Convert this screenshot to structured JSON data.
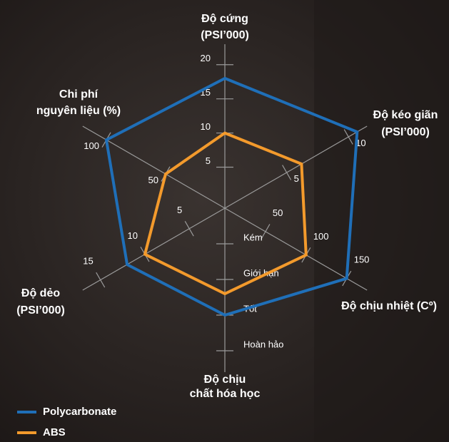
{
  "chart_data": {
    "type": "radar",
    "axes": [
      {
        "label": [
          "Độ cứng",
          "(PSI’000)"
        ],
        "lim": [
          -1,
          23
        ],
        "ticks": [
          5,
          10,
          15,
          20
        ]
      },
      {
        "label": [
          "Độ kéo giãn",
          "(PSI’000)"
        ],
        "lim": [
          0,
          11.5
        ],
        "ticks": [
          5,
          10
        ]
      },
      {
        "label": [
          "Độ chịu nhiệt (Cº)"
        ],
        "lim": [
          0,
          175
        ],
        "ticks": [
          50,
          100,
          150
        ]
      },
      {
        "label": [
          "Độ chịu",
          "chất hóa học"
        ],
        "lim": [
          0,
          4.6
        ],
        "ticks": [
          {
            "value": 1,
            "label": "Kém"
          },
          {
            "value": 2,
            "label": "Giới hạn"
          },
          {
            "value": 3,
            "label": "Tốt"
          },
          {
            "value": 4,
            "label": "Hoàn hảo"
          }
        ]
      },
      {
        "label": [
          "Độ dẻo",
          "(PSI’000)"
        ],
        "lim": [
          1,
          17
        ],
        "ticks": [
          5,
          10,
          15
        ]
      },
      {
        "label": [
          "Chi phí",
          "nguyên liệu (%)"
        ],
        "lim": [
          0,
          120
        ],
        "ticks": [
          50,
          100
        ]
      }
    ],
    "series": [
      {
        "name": "Polycarbonate",
        "color": "#1f6fb8",
        "values": [
          18,
          10.7,
          150,
          3,
          12,
          100
        ]
      },
      {
        "name": "ABS",
        "color": "#f39a2c",
        "values": [
          10,
          6.2,
          100,
          2.4,
          10,
          50
        ]
      }
    ]
  }
}
